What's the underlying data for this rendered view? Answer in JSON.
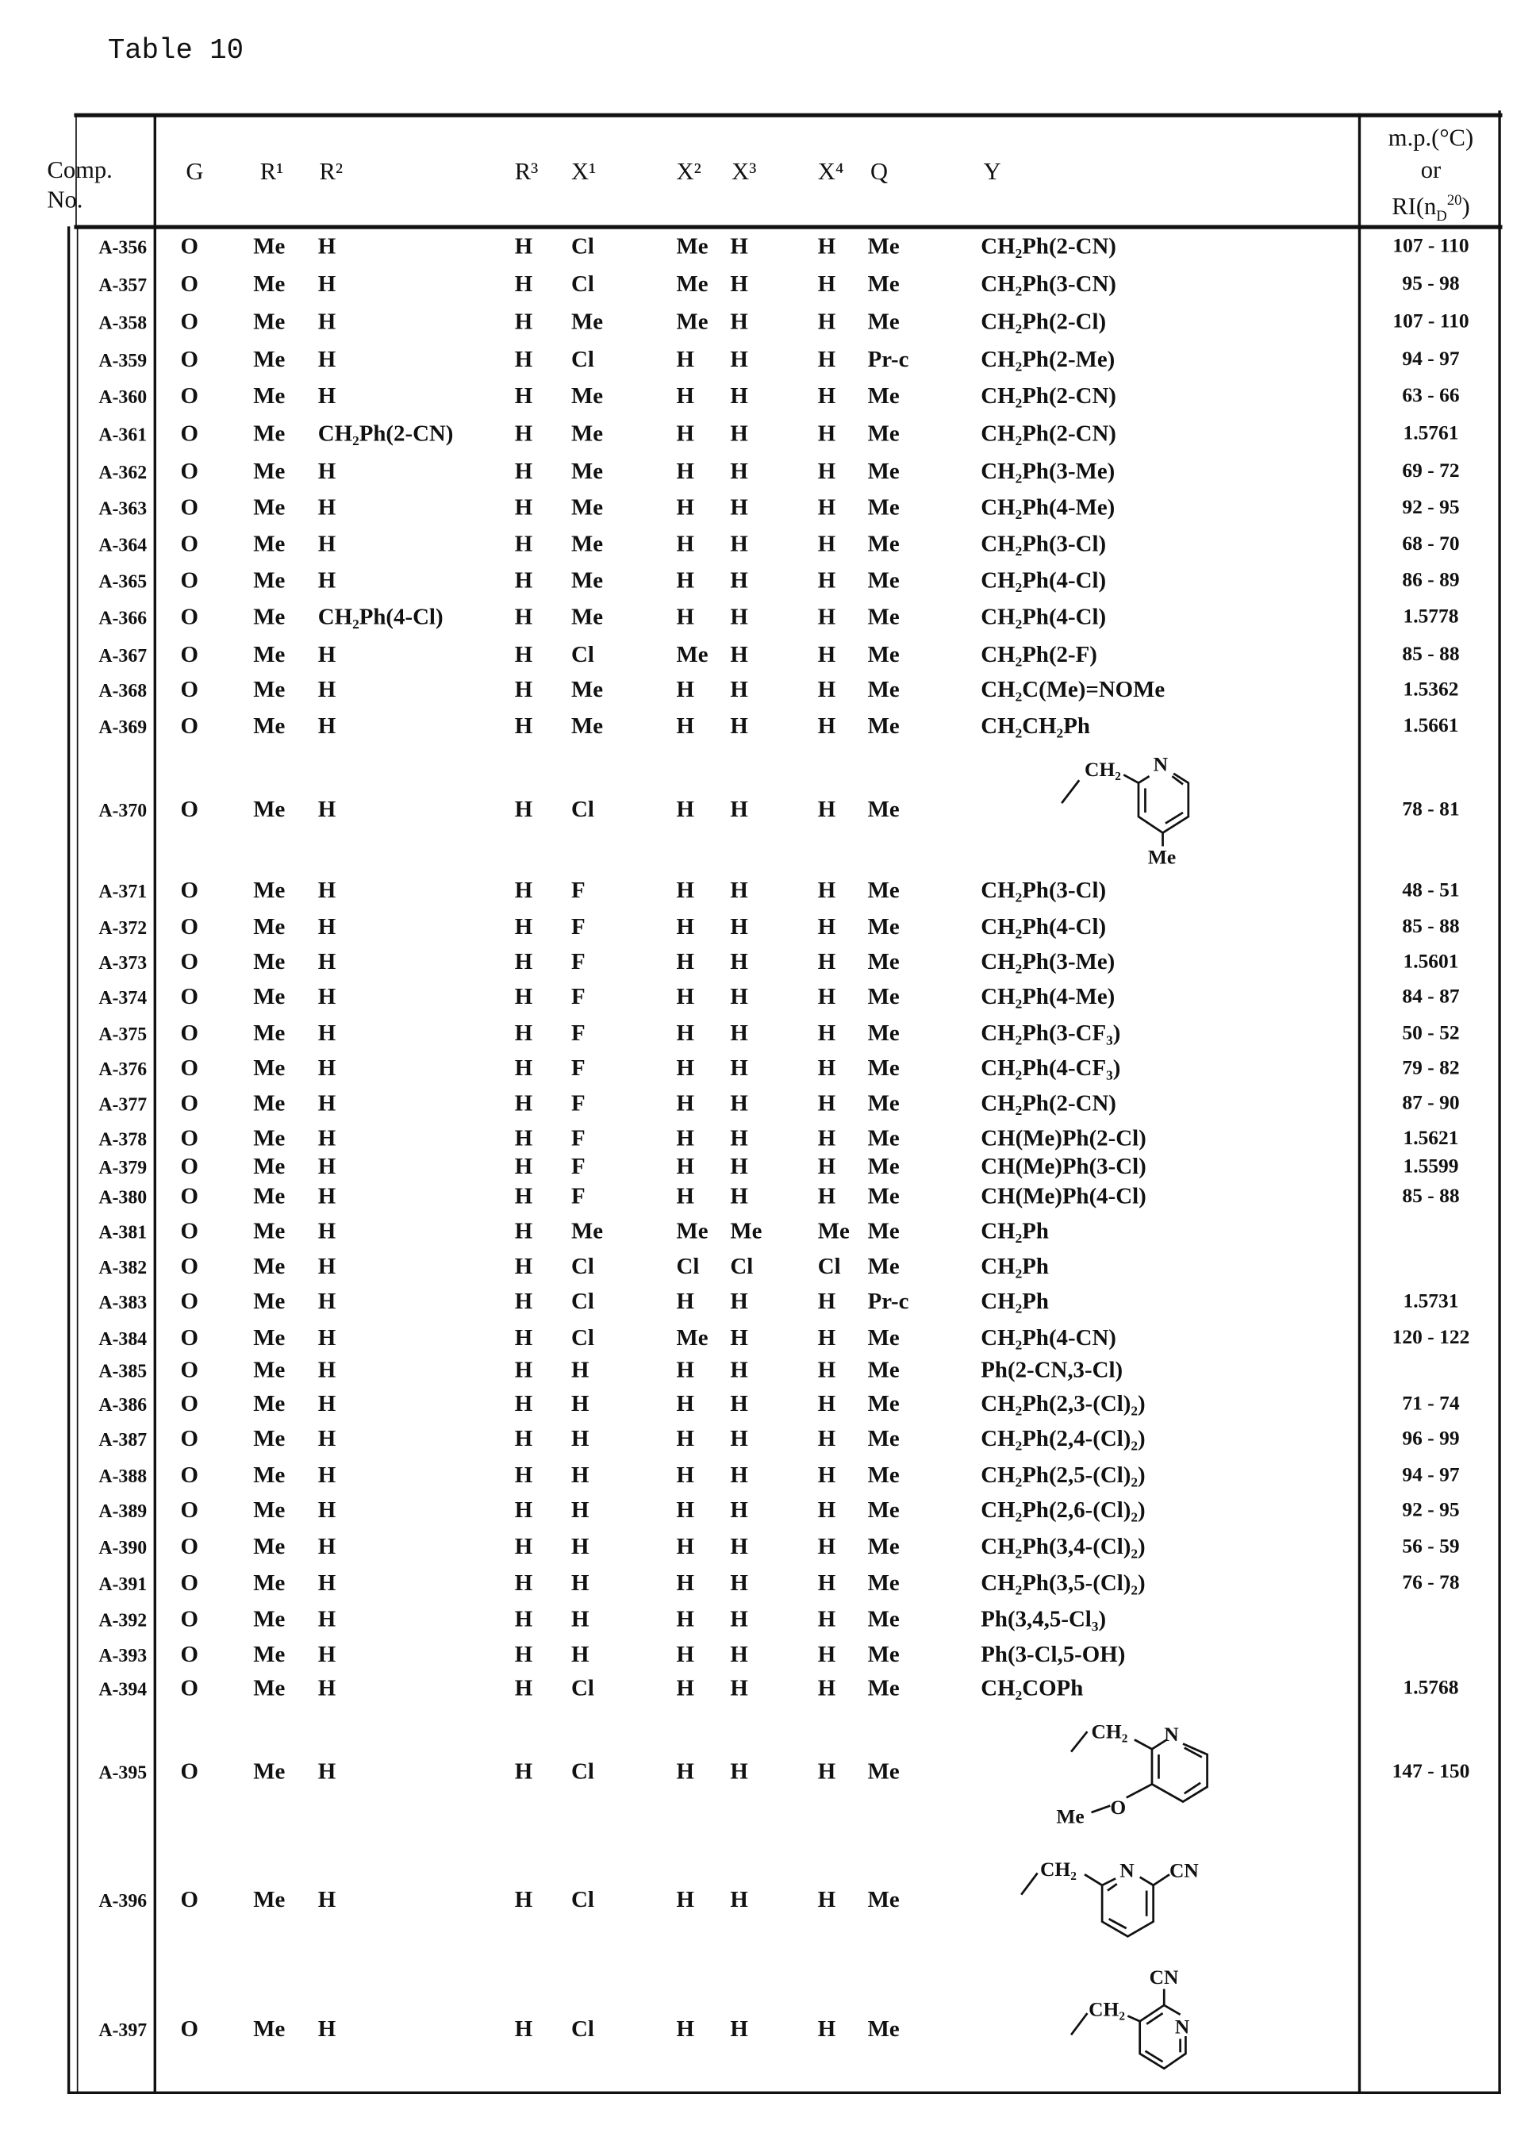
{
  "title": "Table 10",
  "header": {
    "comp": "Comp.",
    "no": "No.",
    "G": "G",
    "R1": "R¹",
    "R2": "R²",
    "R3": "R³",
    "X1": "X¹",
    "X2": "X²",
    "X3": "X³",
    "X4": "X⁴",
    "Q": "Q",
    "Y": "Y",
    "mp_line1": "m.p.(°C)",
    "mp_line2": "or",
    "mp_line3_prefix": "RI(n",
    "mp_line3_sub": "D",
    "mp_line3_sup": "20",
    "mp_line3_suffix": ")"
  },
  "rows": [
    {
      "id": "A-356",
      "G": "O",
      "R1": "Me",
      "R2": "H",
      "R3": "H",
      "X1": "Cl",
      "X2": "Me",
      "X3": "H",
      "X4": "H",
      "Q": "Me",
      "Y": "CH₂Ph(2-CN)",
      "mp": "107 - 110"
    },
    {
      "id": "A-357",
      "G": "O",
      "R1": "Me",
      "R2": "H",
      "R3": "H",
      "X1": "Cl",
      "X2": "Me",
      "X3": "H",
      "X4": "H",
      "Q": "Me",
      "Y": "CH₂Ph(3-CN)",
      "mp": "95 - 98"
    },
    {
      "id": "A-358",
      "G": "O",
      "R1": "Me",
      "R2": "H",
      "R3": "H",
      "X1": "Me",
      "X2": "Me",
      "X3": "H",
      "X4": "H",
      "Q": "Me",
      "Y": "CH₂Ph(2-Cl)",
      "mp": "107 - 110"
    },
    {
      "id": "A-359",
      "G": "O",
      "R1": "Me",
      "R2": "H",
      "R3": "H",
      "X1": "Cl",
      "X2": "H",
      "X3": "H",
      "X4": "H",
      "Q": "Pr-c",
      "Y": "CH₂Ph(2-Me)",
      "mp": "94 - 97"
    },
    {
      "id": "A-360",
      "G": "O",
      "R1": "Me",
      "R2": "H",
      "R3": "H",
      "X1": "Me",
      "X2": "H",
      "X3": "H",
      "X4": "H",
      "Q": "Me",
      "Y": "CH₂Ph(2-CN)",
      "mp": "63 - 66"
    },
    {
      "id": "A-361",
      "G": "O",
      "R1": "Me",
      "R2": "CH₂Ph(2-CN)",
      "R3": "H",
      "X1": "Me",
      "X2": "H",
      "X3": "H",
      "X4": "H",
      "Q": "Me",
      "Y": "CH₂Ph(2-CN)",
      "mp": "1.5761"
    },
    {
      "id": "A-362",
      "G": "O",
      "R1": "Me",
      "R2": "H",
      "R3": "H",
      "X1": "Me",
      "X2": "H",
      "X3": "H",
      "X4": "H",
      "Q": "Me",
      "Y": "CH₂Ph(3-Me)",
      "mp": "69 - 72"
    },
    {
      "id": "A-363",
      "G": "O",
      "R1": "Me",
      "R2": "H",
      "R3": "H",
      "X1": "Me",
      "X2": "H",
      "X3": "H",
      "X4": "H",
      "Q": "Me",
      "Y": "CH₂Ph(4-Me)",
      "mp": "92 - 95"
    },
    {
      "id": "A-364",
      "G": "O",
      "R1": "Me",
      "R2": "H",
      "R3": "H",
      "X1": "Me",
      "X2": "H",
      "X3": "H",
      "X4": "H",
      "Q": "Me",
      "Y": "CH₂Ph(3-Cl)",
      "mp": "68 - 70"
    },
    {
      "id": "A-365",
      "G": "O",
      "R1": "Me",
      "R2": "H",
      "R3": "H",
      "X1": "Me",
      "X2": "H",
      "X3": "H",
      "X4": "H",
      "Q": "Me",
      "Y": "CH₂Ph(4-Cl)",
      "mp": "86 - 89"
    },
    {
      "id": "A-366",
      "G": "O",
      "R1": "Me",
      "R2": "CH₂Ph(4-Cl)",
      "R3": "H",
      "X1": "Me",
      "X2": "H",
      "X3": "H",
      "X4": "H",
      "Q": "Me",
      "Y": "CH₂Ph(4-Cl)",
      "mp": "1.5778"
    },
    {
      "id": "A-367",
      "G": "O",
      "R1": "Me",
      "R2": "H",
      "R3": "H",
      "X1": "Cl",
      "X2": "Me",
      "X3": "H",
      "X4": "H",
      "Q": "Me",
      "Y": "CH₂Ph(2-F)",
      "mp": "85 - 88"
    },
    {
      "id": "A-368",
      "G": "O",
      "R1": "Me",
      "R2": "H",
      "R3": "H",
      "X1": "Me",
      "X2": "H",
      "X3": "H",
      "X4": "H",
      "Q": "Me",
      "Y": "CH₂C(Me)=NOMe",
      "mp": "1.5362"
    },
    {
      "id": "A-369",
      "G": "O",
      "R1": "Me",
      "R2": "H",
      "R3": "H",
      "X1": "Me",
      "X2": "H",
      "X3": "H",
      "X4": "H",
      "Q": "Me",
      "Y": "CH₂CH₂Ph",
      "mp": "1.5661"
    },
    {
      "id": "A-370",
      "G": "O",
      "R1": "Me",
      "R2": "H",
      "R3": "H",
      "X1": "Cl",
      "X2": "H",
      "X3": "H",
      "X4": "H",
      "Q": "Me",
      "Y": "",
      "mp": "78 - 81"
    },
    {
      "id": "A-371",
      "G": "O",
      "R1": "Me",
      "R2": "H",
      "R3": "H",
      "X1": "F",
      "X2": "H",
      "X3": "H",
      "X4": "H",
      "Q": "Me",
      "Y": "CH₂Ph(3-Cl)",
      "mp": "48 - 51"
    },
    {
      "id": "A-372",
      "G": "O",
      "R1": "Me",
      "R2": "H",
      "R3": "H",
      "X1": "F",
      "X2": "H",
      "X3": "H",
      "X4": "H",
      "Q": "Me",
      "Y": "CH₂Ph(4-Cl)",
      "mp": "85 - 88"
    },
    {
      "id": "A-373",
      "G": "O",
      "R1": "Me",
      "R2": "H",
      "R3": "H",
      "X1": "F",
      "X2": "H",
      "X3": "H",
      "X4": "H",
      "Q": "Me",
      "Y": "CH₂Ph(3-Me)",
      "mp": "1.5601"
    },
    {
      "id": "A-374",
      "G": "O",
      "R1": "Me",
      "R2": "H",
      "R3": "H",
      "X1": "F",
      "X2": "H",
      "X3": "H",
      "X4": "H",
      "Q": "Me",
      "Y": "CH₂Ph(4-Me)",
      "mp": "84 - 87"
    },
    {
      "id": "A-375",
      "G": "O",
      "R1": "Me",
      "R2": "H",
      "R3": "H",
      "X1": "F",
      "X2": "H",
      "X3": "H",
      "X4": "H",
      "Q": "Me",
      "Y": "CH₂Ph(3-CF₃)",
      "mp": "50 - 52"
    },
    {
      "id": "A-376",
      "G": "O",
      "R1": "Me",
      "R2": "H",
      "R3": "H",
      "X1": "F",
      "X2": "H",
      "X3": "H",
      "X4": "H",
      "Q": "Me",
      "Y": "CH₂Ph(4-CF₃)",
      "mp": "79 - 82"
    },
    {
      "id": "A-377",
      "G": "O",
      "R1": "Me",
      "R2": "H",
      "R3": "H",
      "X1": "F",
      "X2": "H",
      "X3": "H",
      "X4": "H",
      "Q": "Me",
      "Y": "CH₂Ph(2-CN)",
      "mp": "87 - 90"
    },
    {
      "id": "A-378",
      "G": "O",
      "R1": "Me",
      "R2": "H",
      "R3": "H",
      "X1": "F",
      "X2": "H",
      "X3": "H",
      "X4": "H",
      "Q": "Me",
      "Y": "CH(Me)Ph(2-Cl)",
      "mp": "1.5621"
    },
    {
      "id": "A-379",
      "G": "O",
      "R1": "Me",
      "R2": "H",
      "R3": "H",
      "X1": "F",
      "X2": "H",
      "X3": "H",
      "X4": "H",
      "Q": "Me",
      "Y": "CH(Me)Ph(3-Cl)",
      "mp": "1.5599"
    },
    {
      "id": "A-380",
      "G": "O",
      "R1": "Me",
      "R2": "H",
      "R3": "H",
      "X1": "F",
      "X2": "H",
      "X3": "H",
      "X4": "H",
      "Q": "Me",
      "Y": "CH(Me)Ph(4-Cl)",
      "mp": "85 - 88"
    },
    {
      "id": "A-381",
      "G": "O",
      "R1": "Me",
      "R2": "H",
      "R3": "H",
      "X1": "Me",
      "X2": "Me",
      "X3": "Me",
      "X4": "Me",
      "Q": "Me",
      "Y": "CH₂Ph",
      "mp": ""
    },
    {
      "id": "A-382",
      "G": "O",
      "R1": "Me",
      "R2": "H",
      "R3": "H",
      "X1": "Cl",
      "X2": "Cl",
      "X3": "Cl",
      "X4": "Cl",
      "Q": "Me",
      "Y": "CH₂Ph",
      "mp": ""
    },
    {
      "id": "A-383",
      "G": "O",
      "R1": "Me",
      "R2": "H",
      "R3": "H",
      "X1": "Cl",
      "X2": "H",
      "X3": "H",
      "X4": "H",
      "Q": "Pr-c",
      "Y": "CH₂Ph",
      "mp": "1.5731"
    },
    {
      "id": "A-384",
      "G": "O",
      "R1": "Me",
      "R2": "H",
      "R3": "H",
      "X1": "Cl",
      "X2": "Me",
      "X3": "H",
      "X4": "H",
      "Q": "Me",
      "Y": "CH₂Ph(4-CN)",
      "mp": "120 - 122"
    },
    {
      "id": "A-385",
      "G": "O",
      "R1": "Me",
      "R2": "H",
      "R3": "H",
      "X1": "H",
      "X2": "H",
      "X3": "H",
      "X4": "H",
      "Q": "Me",
      "Y": "Ph(2-CN,3-Cl)",
      "mp": ""
    },
    {
      "id": "A-386",
      "G": "O",
      "R1": "Me",
      "R2": "H",
      "R3": "H",
      "X1": "H",
      "X2": "H",
      "X3": "H",
      "X4": "H",
      "Q": "Me",
      "Y": "CH₂Ph(2,3-(Cl)₂)",
      "mp": "71 - 74"
    },
    {
      "id": "A-387",
      "G": "O",
      "R1": "Me",
      "R2": "H",
      "R3": "H",
      "X1": "H",
      "X2": "H",
      "X3": "H",
      "X4": "H",
      "Q": "Me",
      "Y": "CH₂Ph(2,4-(Cl)₂)",
      "mp": "96 - 99"
    },
    {
      "id": "A-388",
      "G": "O",
      "R1": "Me",
      "R2": "H",
      "R3": "H",
      "X1": "H",
      "X2": "H",
      "X3": "H",
      "X4": "H",
      "Q": "Me",
      "Y": "CH₂Ph(2,5-(Cl)₂)",
      "mp": "94 - 97"
    },
    {
      "id": "A-389",
      "G": "O",
      "R1": "Me",
      "R2": "H",
      "R3": "H",
      "X1": "H",
      "X2": "H",
      "X3": "H",
      "X4": "H",
      "Q": "Me",
      "Y": "CH₂Ph(2,6-(Cl)₂)",
      "mp": "92 - 95"
    },
    {
      "id": "A-390",
      "G": "O",
      "R1": "Me",
      "R2": "H",
      "R3": "H",
      "X1": "H",
      "X2": "H",
      "X3": "H",
      "X4": "H",
      "Q": "Me",
      "Y": "CH₂Ph(3,4-(Cl)₂)",
      "mp": "56 - 59"
    },
    {
      "id": "A-391",
      "G": "O",
      "R1": "Me",
      "R2": "H",
      "R3": "H",
      "X1": "H",
      "X2": "H",
      "X3": "H",
      "X4": "H",
      "Q": "Me",
      "Y": "CH₂Ph(3,5-(Cl)₂)",
      "mp": "76 - 78"
    },
    {
      "id": "A-392",
      "G": "O",
      "R1": "Me",
      "R2": "H",
      "R3": "H",
      "X1": "H",
      "X2": "H",
      "X3": "H",
      "X4": "H",
      "Q": "Me",
      "Y": "Ph(3,4,5-Cl₃)",
      "mp": ""
    },
    {
      "id": "A-393",
      "G": "O",
      "R1": "Me",
      "R2": "H",
      "R3": "H",
      "X1": "H",
      "X2": "H",
      "X3": "H",
      "X4": "H",
      "Q": "Me",
      "Y": "Ph(3-Cl,5-OH)",
      "mp": ""
    },
    {
      "id": "A-394",
      "G": "O",
      "R1": "Me",
      "R2": "H",
      "R3": "H",
      "X1": "Cl",
      "X2": "H",
      "X3": "H",
      "X4": "H",
      "Q": "Me",
      "Y": "CH₂COPh",
      "mp": "1.5768"
    },
    {
      "id": "A-395",
      "G": "O",
      "R1": "Me",
      "R2": "H",
      "R3": "H",
      "X1": "Cl",
      "X2": "H",
      "X3": "H",
      "X4": "H",
      "Q": "Me",
      "Y": "",
      "mp": "147 - 150"
    },
    {
      "id": "A-396",
      "G": "O",
      "R1": "Me",
      "R2": "H",
      "R3": "H",
      "X1": "Cl",
      "X2": "H",
      "X3": "H",
      "X4": "H",
      "Q": "Me",
      "Y": "",
      "mp": ""
    },
    {
      "id": "A-397",
      "G": "O",
      "R1": "Me",
      "R2": "H",
      "R3": "H",
      "X1": "Cl",
      "X2": "H",
      "X3": "H",
      "X4": "H",
      "Q": "Me",
      "Y": "",
      "mp": ""
    }
  ],
  "structures": {
    "s370": {
      "ch2": "CH₂",
      "n": "N",
      "me": "Me"
    },
    "s395": {
      "ch2": "CH₂",
      "n": "N",
      "o": "O",
      "me": "Me"
    },
    "s396": {
      "ch2": "CH₂",
      "n": "N",
      "cn": "CN"
    },
    "s397": {
      "ch2": "CH₂",
      "n": "N",
      "cn": "CN"
    }
  }
}
